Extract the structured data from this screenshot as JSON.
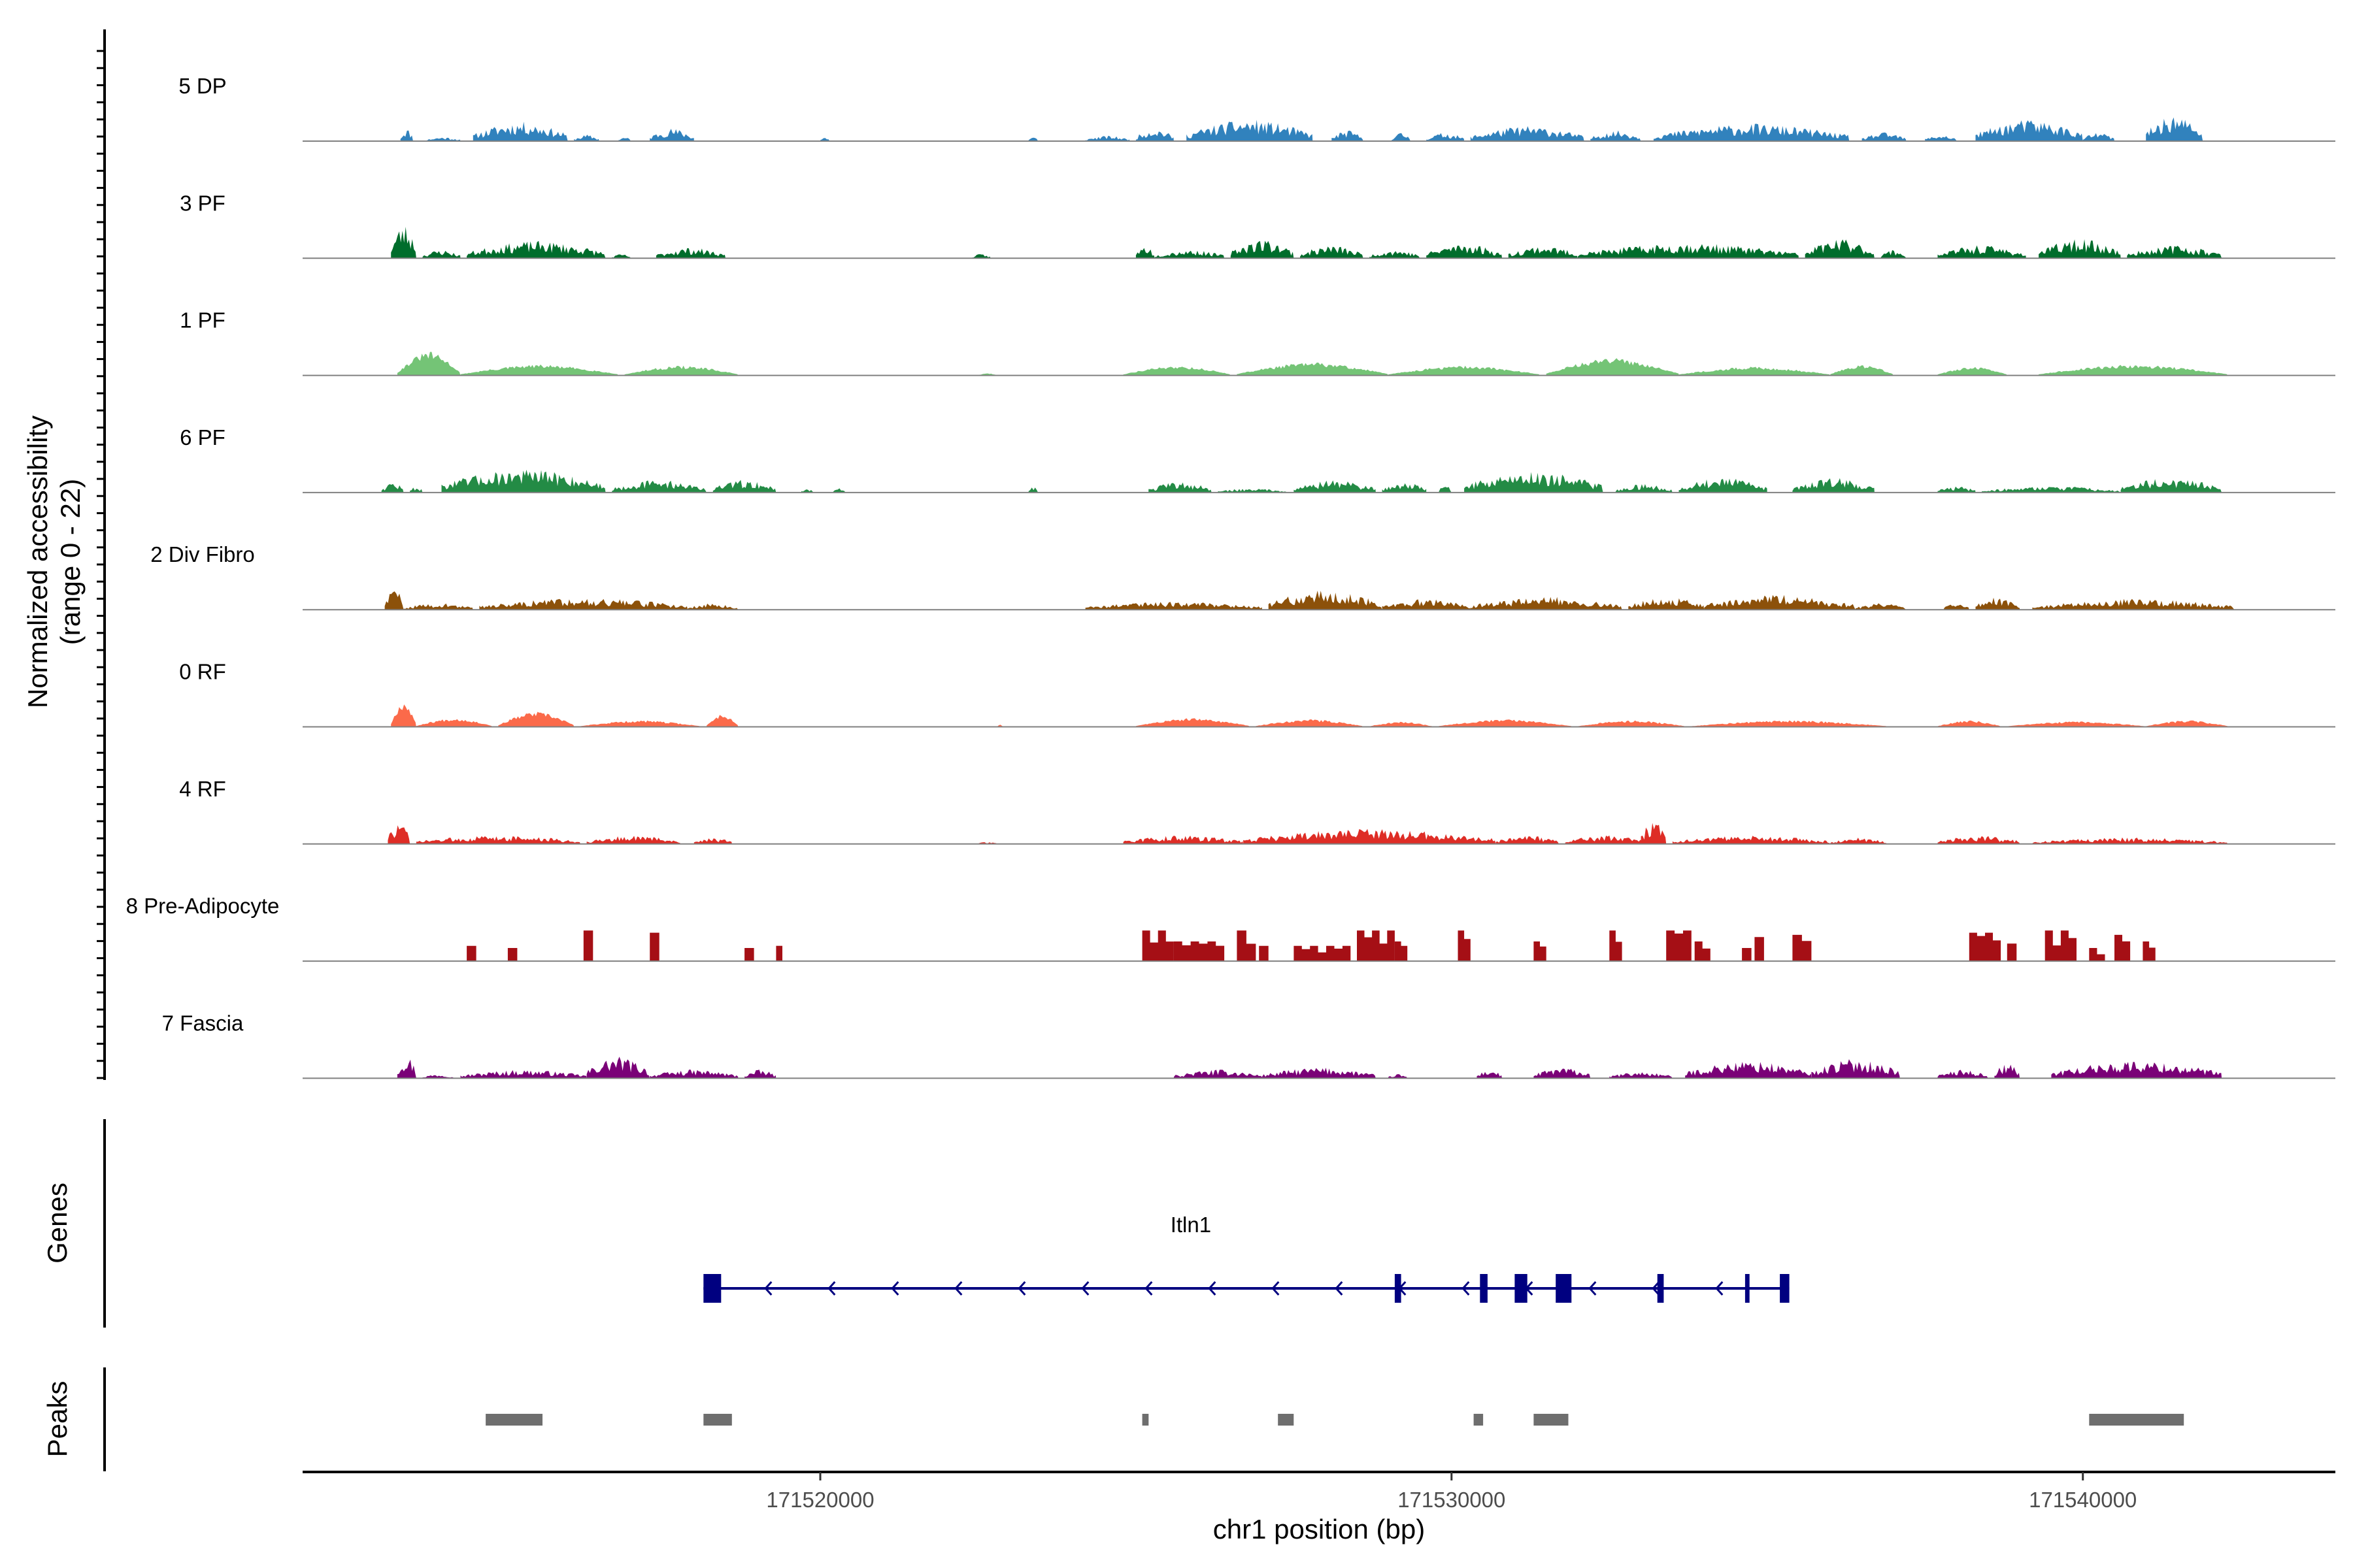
{
  "chart_data": {
    "type": "coverage",
    "y_axis_label": [
      "Normalized accessibility",
      "(range 0 - 22)"
    ],
    "y_range": [
      0,
      22
    ],
    "x_axis_label": "chr1 position (bp)",
    "x_range": [
      171511800,
      171544000
    ],
    "x_ticks": [
      171520000,
      171530000,
      171540000
    ],
    "x_tick_labels": [
      "171520000",
      "171530000",
      "171540000"
    ],
    "tracks": [
      {
        "name": "5 DP",
        "color": "#3182BD",
        "style": "spiky",
        "seed": 11,
        "regions": [
          [
            171513350,
            171513550,
            6
          ],
          [
            171513750,
            171514300,
            2
          ],
          [
            171514500,
            171516000,
            9
          ],
          [
            171516100,
            171516500,
            3
          ],
          [
            171516800,
            171517000,
            2
          ],
          [
            171517300,
            171518000,
            6
          ],
          [
            171520000,
            171520150,
            2
          ],
          [
            171523300,
            171523450,
            2
          ],
          [
            171524200,
            171524900,
            2.5
          ],
          [
            171525000,
            171525600,
            6
          ],
          [
            171525800,
            171527800,
            10
          ],
          [
            171528100,
            171528600,
            5
          ],
          [
            171529050,
            171529350,
            4
          ],
          [
            171529600,
            171530200,
            4
          ],
          [
            171530300,
            171532100,
            7
          ],
          [
            171532200,
            171533000,
            5
          ],
          [
            171533200,
            171536300,
            8
          ],
          [
            171536500,
            171537200,
            4
          ],
          [
            171537500,
            171538000,
            3
          ],
          [
            171538300,
            171540000,
            10
          ],
          [
            171540000,
            171540500,
            4
          ],
          [
            171541000,
            171541900,
            12
          ]
        ]
      },
      {
        "name": "3 PF",
        "color": "#006D2C",
        "style": "spiky",
        "seed": 23,
        "regions": [
          [
            171513200,
            171513600,
            16
          ],
          [
            171513700,
            171514300,
            4
          ],
          [
            171514400,
            171516600,
            8
          ],
          [
            171516700,
            171517000,
            2
          ],
          [
            171517400,
            171518500,
            5
          ],
          [
            171522400,
            171522700,
            2
          ],
          [
            171525000,
            171525300,
            6
          ],
          [
            171525300,
            171526400,
            4
          ],
          [
            171526500,
            171527500,
            9
          ],
          [
            171527600,
            171528600,
            6
          ],
          [
            171528700,
            171529500,
            4
          ],
          [
            171529600,
            171530800,
            7
          ],
          [
            171530900,
            171532000,
            6
          ],
          [
            171532000,
            171535500,
            7
          ],
          [
            171535600,
            171536700,
            9
          ],
          [
            171536800,
            171537200,
            4
          ],
          [
            171537700,
            171539100,
            6
          ],
          [
            171539300,
            171540600,
            9
          ],
          [
            171540700,
            171542200,
            6
          ]
        ]
      },
      {
        "name": "1 PF",
        "color": "#74C476",
        "style": "smooth",
        "seed": 31,
        "regions": [
          [
            171513300,
            171514300,
            11
          ],
          [
            171514300,
            171516800,
            5
          ],
          [
            171516900,
            171518700,
            4.5
          ],
          [
            171522500,
            171522800,
            1
          ],
          [
            171524800,
            171526500,
            4.5
          ],
          [
            171526600,
            171529000,
            6
          ],
          [
            171529000,
            171531400,
            4.5
          ],
          [
            171531500,
            171533600,
            8
          ],
          [
            171533600,
            171536000,
            4
          ],
          [
            171536000,
            171537000,
            5
          ],
          [
            171537700,
            171538800,
            4
          ],
          [
            171539300,
            171542300,
            5
          ]
        ]
      },
      {
        "name": "6 PF",
        "color": "#238B45",
        "style": "spiky",
        "seed": 47,
        "regions": [
          [
            171513050,
            171513400,
            5
          ],
          [
            171513500,
            171513700,
            3
          ],
          [
            171514000,
            171516600,
            11
          ],
          [
            171516700,
            171518200,
            6
          ],
          [
            171518300,
            171519300,
            6
          ],
          [
            171519700,
            171519900,
            2
          ],
          [
            171520200,
            171520400,
            2
          ],
          [
            171523300,
            171523450,
            3
          ],
          [
            171525200,
            171526200,
            5
          ],
          [
            171526300,
            171527400,
            2
          ],
          [
            171527500,
            171528800,
            6
          ],
          [
            171528900,
            171529600,
            5
          ],
          [
            171529800,
            171530000,
            4
          ],
          [
            171530200,
            171532400,
            10
          ],
          [
            171532600,
            171533500,
            4
          ],
          [
            171533600,
            171535000,
            7
          ],
          [
            171535400,
            171536700,
            7
          ],
          [
            171537700,
            171538300,
            3
          ],
          [
            171538400,
            171540600,
            3
          ],
          [
            171540600,
            171542200,
            7
          ]
        ]
      },
      {
        "name": "2 Div Fibro",
        "color": "#8C510A",
        "style": "spiky",
        "seed": 59,
        "regions": [
          [
            171513100,
            171513400,
            10
          ],
          [
            171513400,
            171514500,
            3
          ],
          [
            171514600,
            171517900,
            5.5
          ],
          [
            171517900,
            171518700,
            3
          ],
          [
            171524200,
            171527000,
            4
          ],
          [
            171527100,
            171528900,
            9
          ],
          [
            171528900,
            171530300,
            5
          ],
          [
            171530300,
            171532700,
            6
          ],
          [
            171532800,
            171534000,
            6
          ],
          [
            171534000,
            171536400,
            7
          ],
          [
            171536400,
            171537200,
            3
          ],
          [
            171537800,
            171538200,
            3
          ],
          [
            171538300,
            171539000,
            6
          ],
          [
            171539200,
            171542400,
            5
          ]
        ]
      },
      {
        "name": "0 RF",
        "color": "#FB6A4A",
        "style": "smooth",
        "seed": 67,
        "regions": [
          [
            171513200,
            171513600,
            12
          ],
          [
            171513600,
            171514800,
            4
          ],
          [
            171514900,
            171516100,
            7
          ],
          [
            171516200,
            171518100,
            3
          ],
          [
            171518200,
            171518700,
            6
          ],
          [
            171522800,
            171522900,
            1
          ],
          [
            171525000,
            171526800,
            4
          ],
          [
            171526900,
            171528600,
            3.5
          ],
          [
            171528700,
            171529700,
            2.5
          ],
          [
            171529800,
            171531900,
            3.5
          ],
          [
            171532000,
            171533700,
            3
          ],
          [
            171533800,
            171536900,
            3
          ],
          [
            171537700,
            171538700,
            3
          ],
          [
            171538800,
            171541000,
            2.5
          ],
          [
            171541000,
            171542300,
            3
          ]
        ]
      },
      {
        "name": "4 RF",
        "color": "#DE2D26",
        "style": "spiky",
        "seed": 73,
        "regions": [
          [
            171513150,
            171513500,
            10
          ],
          [
            171513600,
            171516200,
            4
          ],
          [
            171516300,
            171517800,
            4
          ],
          [
            171518000,
            171518600,
            3
          ],
          [
            171522500,
            171522800,
            1
          ],
          [
            171524800,
            171526700,
            4
          ],
          [
            171526700,
            171530700,
            7
          ],
          [
            171530700,
            171531700,
            4
          ],
          [
            171531800,
            171533100,
            4
          ],
          [
            171533000,
            171533400,
            11
          ],
          [
            171533500,
            171536000,
            4
          ],
          [
            171536000,
            171536900,
            3
          ],
          [
            171537700,
            171539000,
            4
          ],
          [
            171539200,
            171542300,
            3
          ]
        ]
      },
      {
        "name": "8 Pre-Adipocyte",
        "color": "#A50F15",
        "style": "blocky",
        "seed": 89,
        "regions": [
          [
            171514400,
            171514550,
            7
          ],
          [
            171515050,
            171515200,
            6
          ],
          [
            171516250,
            171516400,
            14
          ],
          [
            171517300,
            171517450,
            13
          ],
          [
            171518800,
            171518950,
            6
          ],
          [
            171519300,
            171519400,
            7
          ],
          [
            171525100,
            171525600,
            14
          ],
          [
            171525600,
            171526400,
            9
          ],
          [
            171526600,
            171526900,
            14
          ],
          [
            171526950,
            171527100,
            7
          ],
          [
            171527500,
            171528400,
            7
          ],
          [
            171528500,
            171529100,
            14
          ],
          [
            171529100,
            171529300,
            9
          ],
          [
            171530100,
            171530300,
            14
          ],
          [
            171531300,
            171531500,
            9
          ],
          [
            171532500,
            171532700,
            14
          ],
          [
            171533400,
            171533800,
            14
          ],
          [
            171533850,
            171534100,
            9
          ],
          [
            171534600,
            171534750,
            6
          ],
          [
            171534800,
            171534950,
            11
          ],
          [
            171535400,
            171535700,
            12
          ],
          [
            171538200,
            171538700,
            13
          ],
          [
            171538800,
            171538950,
            8
          ],
          [
            171539400,
            171539900,
            14
          ],
          [
            171540100,
            171540350,
            6
          ],
          [
            171540500,
            171540750,
            12
          ],
          [
            171540950,
            171541150,
            9
          ]
        ]
      },
      {
        "name": "7 Fascia",
        "color": "#7A0177",
        "style": "spiky",
        "seed": 97,
        "regions": [
          [
            171513300,
            171513600,
            11
          ],
          [
            171513700,
            171514200,
            2
          ],
          [
            171514300,
            171516300,
            4
          ],
          [
            171516300,
            171517300,
            10
          ],
          [
            171517300,
            171518700,
            4
          ],
          [
            171518800,
            171519300,
            4
          ],
          [
            171525600,
            171527000,
            4
          ],
          [
            171527000,
            171528800,
            5
          ],
          [
            171529000,
            171529300,
            2
          ],
          [
            171530400,
            171530800,
            4
          ],
          [
            171531300,
            171532200,
            5
          ],
          [
            171532500,
            171533500,
            3
          ],
          [
            171533700,
            171535700,
            8
          ],
          [
            171535700,
            171537100,
            9
          ],
          [
            171537700,
            171538500,
            4
          ],
          [
            171538600,
            171539000,
            7
          ],
          [
            171539500,
            171542200,
            8
          ]
        ]
      }
    ],
    "genes": [
      {
        "name": "Itln1",
        "start": 171518150,
        "end": 171535350,
        "strand": "-",
        "exons": [
          [
            171518150,
            171518430
          ],
          [
            171529100,
            171529200
          ],
          [
            171530450,
            171530570
          ],
          [
            171531000,
            171531200
          ],
          [
            171531650,
            171531900
          ],
          [
            171533260,
            171533360
          ],
          [
            171534650,
            171534720
          ],
          [
            171535200,
            171535350
          ]
        ]
      }
    ],
    "peaks": [
      [
        171514700,
        171515600
      ],
      [
        171518150,
        171518600
      ],
      [
        171525100,
        171525200
      ],
      [
        171527250,
        171527500
      ],
      [
        171530350,
        171530500
      ],
      [
        171531300,
        171531850
      ],
      [
        171540100,
        171541600
      ]
    ],
    "panel_labels": {
      "genes": "Genes",
      "peaks": "Peaks"
    }
  },
  "colors": {
    "baseline": "#808080",
    "gene": "#000080",
    "peak": "#6e6e6e",
    "axis": "#000000"
  }
}
